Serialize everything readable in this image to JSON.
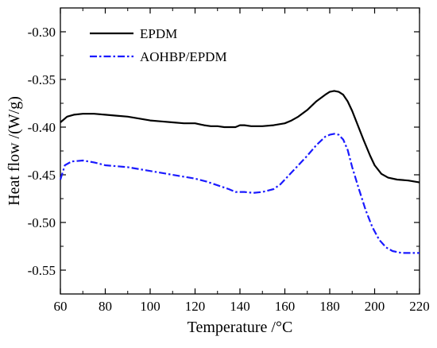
{
  "chart_data": {
    "type": "line",
    "title": "",
    "xlabel": "Temperature /°C",
    "ylabel": "Heat flow /(W/g)",
    "xlim": [
      60,
      220
    ],
    "ylim": [
      -0.575,
      -0.275
    ],
    "xticks": [
      60,
      80,
      100,
      120,
      140,
      160,
      180,
      200,
      220
    ],
    "xtick_labels": [
      "60",
      "80",
      "100",
      "120",
      "140",
      "160",
      "180",
      "200",
      "220"
    ],
    "yticks": [
      -0.3,
      -0.35,
      -0.4,
      -0.45,
      -0.5,
      -0.55
    ],
    "ytick_labels": [
      "-0.30",
      "-0.35",
      "-0.40",
      "-0.45",
      "-0.50",
      "-0.55"
    ],
    "grid": false,
    "legend_position": "top-left",
    "series": [
      {
        "name": "EPDM",
        "color": "#000000",
        "dash": "solid",
        "x": [
          60,
          63,
          66,
          70,
          75,
          80,
          85,
          90,
          95,
          100,
          105,
          110,
          115,
          120,
          124,
          127,
          130,
          133,
          136,
          138,
          140,
          142,
          145,
          150,
          155,
          160,
          163,
          166,
          170,
          174,
          178,
          180,
          182,
          184,
          186,
          188,
          190,
          192,
          195,
          198,
          200,
          203,
          206,
          210,
          215,
          220
        ],
        "y": [
          -0.395,
          -0.389,
          -0.387,
          -0.386,
          -0.386,
          -0.387,
          -0.388,
          -0.389,
          -0.391,
          -0.393,
          -0.394,
          -0.395,
          -0.396,
          -0.396,
          -0.398,
          -0.399,
          -0.399,
          -0.4,
          -0.4,
          -0.4,
          -0.398,
          -0.398,
          -0.399,
          -0.399,
          -0.398,
          -0.396,
          -0.393,
          -0.389,
          -0.382,
          -0.373,
          -0.366,
          -0.363,
          -0.362,
          -0.363,
          -0.366,
          -0.373,
          -0.383,
          -0.395,
          -0.413,
          -0.43,
          -0.44,
          -0.449,
          -0.453,
          -0.455,
          -0.456,
          -0.458
        ]
      },
      {
        "name": "AOHBP/EPDM",
        "color": "#1a1aff",
        "dash": "dashdot",
        "x": [
          60,
          62,
          65,
          70,
          75,
          80,
          85,
          90,
          95,
          100,
          105,
          110,
          115,
          120,
          125,
          130,
          135,
          138,
          142,
          146,
          150,
          155,
          158,
          162,
          166,
          170,
          174,
          178,
          180,
          182,
          184,
          186,
          188,
          190,
          193,
          196,
          199,
          202,
          205,
          208,
          212,
          216,
          220
        ],
        "y": [
          -0.455,
          -0.44,
          -0.436,
          -0.435,
          -0.437,
          -0.44,
          -0.441,
          -0.442,
          -0.444,
          -0.446,
          -0.448,
          -0.45,
          -0.452,
          -0.454,
          -0.457,
          -0.461,
          -0.465,
          -0.468,
          -0.468,
          -0.469,
          -0.468,
          -0.465,
          -0.46,
          -0.45,
          -0.44,
          -0.43,
          -0.419,
          -0.41,
          -0.408,
          -0.407,
          -0.408,
          -0.413,
          -0.424,
          -0.442,
          -0.465,
          -0.487,
          -0.505,
          -0.518,
          -0.526,
          -0.53,
          -0.532,
          -0.532,
          -0.532
        ]
      }
    ]
  }
}
